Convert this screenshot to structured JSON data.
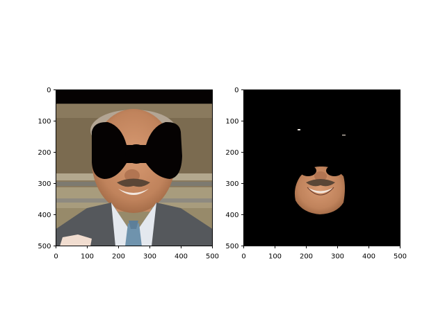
{
  "chart_data": [
    {
      "type": "image",
      "content": "photo of a man in a suit and tie with a black bow-tie shaped mask over his eyes; black band at top",
      "xlim": [
        0,
        500
      ],
      "ylim": [
        500,
        0
      ],
      "xticks": [
        0,
        100,
        200,
        300,
        400,
        500
      ],
      "yticks": [
        0,
        100,
        200,
        300,
        400,
        500
      ],
      "grid": false
    },
    {
      "type": "image",
      "content": "same photo masked: only lower face (nose, moustache, mouth, chin) visible on a black background",
      "xlim": [
        0,
        500
      ],
      "ylim": [
        500,
        0
      ],
      "xticks": [
        0,
        100,
        200,
        300,
        400,
        500
      ],
      "yticks": [
        0,
        100,
        200,
        300,
        400,
        500
      ],
      "grid": false
    }
  ],
  "colors": {
    "mask": "#050202",
    "background_wall": "#8a7a5e",
    "suit": "#55585c",
    "shirt": "#e4e8ee",
    "tie": "#6f93ad",
    "skin": "#c58a64",
    "hair": "#b3a594"
  }
}
